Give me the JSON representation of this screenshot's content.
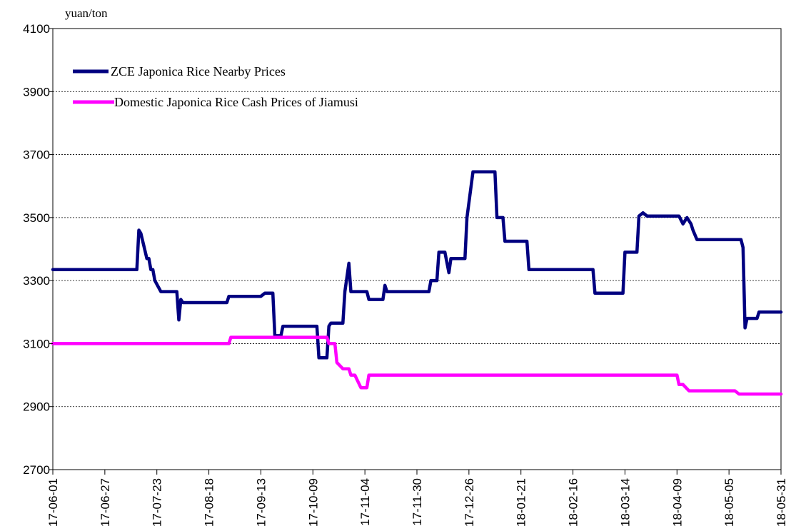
{
  "chart_data": {
    "type": "line",
    "ylabel": "yuan/ton",
    "ylim": [
      2700,
      4100
    ],
    "yticks": [
      2700,
      2900,
      3100,
      3300,
      3500,
      3700,
      3900,
      4100
    ],
    "xlim": [
      "17-06-01",
      "18-05-31"
    ],
    "xticks": [
      "17-06-01",
      "17-06-27",
      "17-07-23",
      "17-08-18",
      "17-09-13",
      "17-10-09",
      "17-11-04",
      "17-11-30",
      "17-12-26",
      "18-01-21",
      "18-02-16",
      "18-03-14",
      "18-04-09",
      "18-05-05",
      "18-05-31"
    ],
    "grid": "horizontal dashed",
    "legend_position": "top-left",
    "series": [
      {
        "name": "ZCE Japonica Rice Nearby Prices",
        "color": "#000080",
        "x": [
          "17-06-01",
          "17-07-13",
          "17-07-14",
          "17-07-15",
          "17-07-18",
          "17-07-19",
          "17-07-20",
          "17-07-21",
          "17-07-22",
          "17-07-25",
          "17-07-26",
          "17-07-27",
          "17-08-02",
          "17-08-03",
          "17-08-04",
          "17-08-05",
          "17-08-06",
          "17-08-27",
          "17-08-28",
          "17-09-13",
          "17-09-15",
          "17-09-19",
          "17-09-20",
          "17-09-23",
          "17-09-24",
          "17-10-11",
          "17-10-12",
          "17-10-16",
          "17-10-17",
          "17-10-18",
          "17-10-24",
          "17-10-25",
          "17-10-27",
          "17-10-28",
          "17-11-05",
          "17-11-06",
          "17-11-13",
          "17-11-14",
          "17-11-15",
          "17-12-06",
          "17-12-07",
          "17-12-10",
          "17-12-11",
          "17-12-14",
          "17-12-16",
          "17-12-17",
          "17-12-24",
          "17-12-25",
          "17-12-28",
          "17-12-30",
          "18-01-08",
          "18-01-09",
          "18-01-12",
          "18-01-13",
          "18-01-24",
          "18-01-25",
          "18-02-26",
          "18-02-27",
          "18-03-13",
          "18-03-14",
          "18-03-20",
          "18-03-21",
          "18-03-23",
          "18-03-25",
          "18-04-09",
          "18-04-10",
          "18-04-12",
          "18-04-13",
          "18-04-14",
          "18-04-16",
          "18-04-17",
          "18-04-19",
          "18-04-20",
          "18-05-11",
          "18-05-12",
          "18-05-13",
          "18-05-14",
          "18-05-16",
          "18-05-19",
          "18-05-20",
          "18-05-31"
        ],
        "values": [
          3335,
          3335,
          3460,
          3450,
          3370,
          3370,
          3335,
          3335,
          3300,
          3265,
          3265,
          3265,
          3265,
          3175,
          3240,
          3230,
          3230,
          3230,
          3250,
          3250,
          3260,
          3260,
          3125,
          3125,
          3155,
          3155,
          3055,
          3055,
          3155,
          3165,
          3165,
          3265,
          3355,
          3265,
          3265,
          3240,
          3240,
          3285,
          3265,
          3265,
          3300,
          3300,
          3390,
          3390,
          3325,
          3370,
          3370,
          3500,
          3645,
          3645,
          3645,
          3500,
          3500,
          3425,
          3425,
          3335,
          3335,
          3260,
          3260,
          3390,
          3390,
          3505,
          3515,
          3505,
          3505,
          3505,
          3480,
          3490,
          3500,
          3480,
          3460,
          3430,
          3430,
          3430,
          3405,
          3150,
          3180,
          3180,
          3180,
          3200,
          3200
        ]
      },
      {
        "name": "Domestic Japonica Rice Cash Prices of Jiamusi",
        "color": "#ff00ff",
        "x": [
          "17-06-01",
          "17-08-28",
          "17-08-29",
          "17-10-16",
          "17-10-17",
          "17-10-19",
          "17-10-20",
          "17-10-21",
          "17-10-24",
          "17-10-25",
          "17-10-27",
          "17-10-28",
          "17-10-30",
          "17-11-02",
          "17-11-05",
          "17-11-06",
          "18-04-09",
          "18-04-10",
          "18-04-12",
          "18-04-15",
          "18-05-08",
          "18-05-10",
          "18-05-31"
        ],
        "values": [
          3100,
          3100,
          3120,
          3120,
          3100,
          3100,
          3100,
          3040,
          3020,
          3020,
          3020,
          3000,
          3000,
          2960,
          2960,
          3000,
          3000,
          2970,
          2970,
          2950,
          2950,
          2940,
          2940
        ]
      }
    ]
  }
}
